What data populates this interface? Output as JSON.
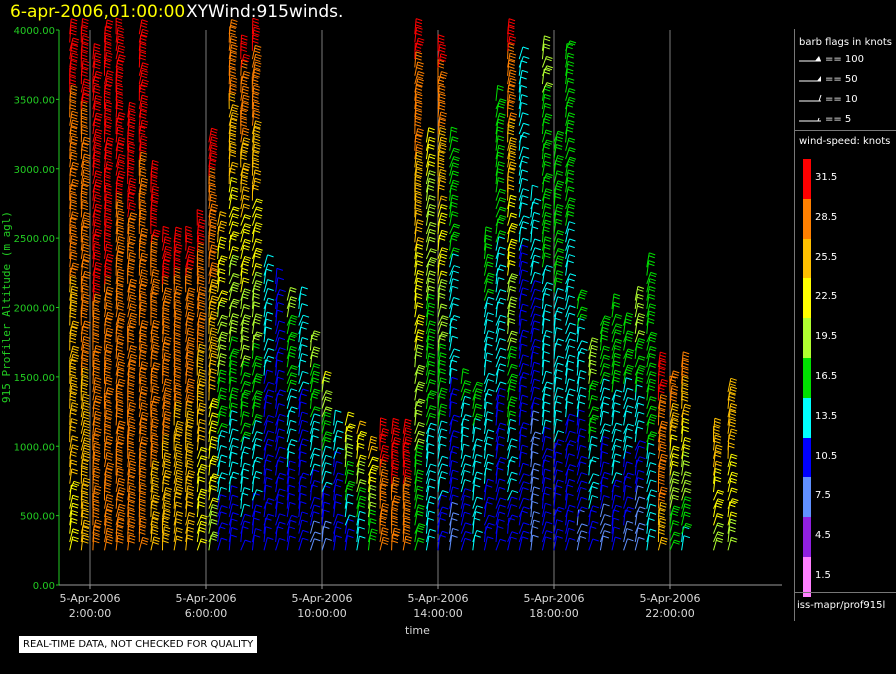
{
  "header": {
    "date": "6-apr-2006,01:00:00",
    "name": "XYWind:915winds."
  },
  "chart_data": {
    "type": "wind-barb",
    "xlabel": "time",
    "ylabel": "915 Profiler Altitude (m agl)",
    "ylim": [
      0,
      4000
    ],
    "y_ticks": [
      "4000.00",
      "3500.00",
      "3000.00",
      "2500.00",
      "2000.00",
      "1500.00",
      "1000.00",
      "500.00",
      "0.00"
    ],
    "x_ticks": [
      {
        "hour": 2,
        "date": "5-Apr-2006",
        "time": "2:00:00"
      },
      {
        "hour": 6,
        "date": "5-Apr-2006",
        "time": "6:00:00"
      },
      {
        "hour": 10,
        "date": "5-Apr-2006",
        "time": "10:00:00"
      },
      {
        "hour": 14,
        "date": "5-Apr-2006",
        "time": "14:00:00"
      },
      {
        "hour": 18,
        "date": "5-Apr-2006",
        "time": "18:00:00"
      },
      {
        "hour": 22,
        "date": "5-Apr-2006",
        "time": "22:00:00"
      }
    ],
    "xlim_hours": [
      1,
      25
    ],
    "grid": "vertical",
    "profiles": [
      {
        "hour": 1.3,
        "top": 4000,
        "speed_low": 23,
        "speed_high": 31
      },
      {
        "hour": 1.7,
        "top": 4000,
        "speed_low": 25,
        "speed_high": 31
      },
      {
        "hour": 2.1,
        "top": 3800,
        "speed_low": 29,
        "speed_high": 31
      },
      {
        "hour": 2.5,
        "top": 4000,
        "speed_low": 29,
        "speed_high": 31
      },
      {
        "hour": 2.9,
        "top": 4000,
        "speed_low": 28,
        "speed_high": 31
      },
      {
        "hour": 3.3,
        "top": 3400,
        "speed_low": 27,
        "speed_high": 31
      },
      {
        "hour": 3.7,
        "top": 4000,
        "speed_low": 27,
        "speed_high": 31
      },
      {
        "hour": 4.1,
        "top": 3000,
        "speed_low": 26,
        "speed_high": 31
      },
      {
        "hour": 4.5,
        "top": 2500,
        "speed_low": 25,
        "speed_high": 31
      },
      {
        "hour": 4.9,
        "top": 2500,
        "speed_low": 24,
        "speed_high": 31
      },
      {
        "hour": 5.3,
        "top": 2500,
        "speed_low": 24,
        "speed_high": 31
      },
      {
        "hour": 5.7,
        "top": 2600,
        "speed_low": 21,
        "speed_high": 31
      },
      {
        "hour": 6.1,
        "top": 3200,
        "speed_low": 20,
        "speed_high": 31
      },
      {
        "hour": 6.4,
        "top": 2600,
        "speed_low": 10,
        "speed_high": 25
      },
      {
        "hour": 6.8,
        "top": 4000,
        "speed_low": 10,
        "speed_high": 30
      },
      {
        "hour": 7.2,
        "top": 3900,
        "speed_low": 11,
        "speed_high": 31
      },
      {
        "hour": 7.6,
        "top": 4000,
        "speed_low": 10,
        "speed_high": 31
      },
      {
        "hour": 8.0,
        "top": 2300,
        "speed_low": 9,
        "speed_high": 14
      },
      {
        "hour": 8.4,
        "top": 2200,
        "speed_low": 11,
        "speed_high": 12
      },
      {
        "hour": 8.8,
        "top": 2100,
        "speed_low": 9,
        "speed_high": 19
      },
      {
        "hour": 9.2,
        "top": 2100,
        "speed_low": 9,
        "speed_high": 14
      },
      {
        "hour": 9.6,
        "top": 1800,
        "speed_low": 8,
        "speed_high": 20
      },
      {
        "hour": 10.0,
        "top": 1500,
        "speed_low": 7,
        "speed_high": 22
      },
      {
        "hour": 10.4,
        "top": 1200,
        "speed_low": 10,
        "speed_high": 13
      },
      {
        "hour": 10.8,
        "top": 1200,
        "speed_low": 10,
        "speed_high": 24
      },
      {
        "hour": 11.2,
        "top": 1100,
        "speed_low": 12,
        "speed_high": 25
      },
      {
        "hour": 11.6,
        "top": 1000,
        "speed_low": 15,
        "speed_high": 26
      },
      {
        "hour": 12.0,
        "top": 1100,
        "speed_low": 28,
        "speed_high": 31
      },
      {
        "hour": 12.4,
        "top": 1100,
        "speed_low": 29,
        "speed_high": 31
      },
      {
        "hour": 12.8,
        "top": 1100,
        "speed_low": 29,
        "speed_high": 31
      },
      {
        "hour": 13.2,
        "top": 4000,
        "speed_low": 15,
        "speed_high": 31
      },
      {
        "hour": 13.6,
        "top": 3200,
        "speed_low": 12,
        "speed_high": 22
      },
      {
        "hour": 14.0,
        "top": 3900,
        "speed_low": 10,
        "speed_high": 31
      },
      {
        "hour": 14.4,
        "top": 3200,
        "speed_low": 8,
        "speed_high": 18
      },
      {
        "hour": 14.8,
        "top": 1500,
        "speed_low": 10,
        "speed_high": 16
      },
      {
        "hour": 15.2,
        "top": 1400,
        "speed_low": 12,
        "speed_high": 16
      },
      {
        "hour": 15.6,
        "top": 2500,
        "speed_low": 11,
        "speed_high": 16
      },
      {
        "hour": 16.0,
        "top": 3500,
        "speed_low": 9,
        "speed_high": 18
      },
      {
        "hour": 16.4,
        "top": 4000,
        "speed_low": 10,
        "speed_high": 31
      },
      {
        "hour": 16.8,
        "top": 3800,
        "speed_low": 9,
        "speed_high": 14
      },
      {
        "hour": 17.2,
        "top": 2800,
        "speed_low": 6,
        "speed_high": 14
      },
      {
        "hour": 17.6,
        "top": 3900,
        "speed_low": 10,
        "speed_high": 19
      },
      {
        "hour": 18.0,
        "top": 3200,
        "speed_low": 10,
        "speed_high": 18
      },
      {
        "hour": 18.4,
        "top": 3900,
        "speed_low": 10,
        "speed_high": 18
      },
      {
        "hour": 18.8,
        "top": 2100,
        "speed_low": 8,
        "speed_high": 16
      },
      {
        "hour": 19.2,
        "top": 1700,
        "speed_low": 10,
        "speed_high": 20
      },
      {
        "hour": 19.6,
        "top": 1900,
        "speed_low": 7,
        "speed_high": 18
      },
      {
        "hour": 20.0,
        "top": 2000,
        "speed_low": 10,
        "speed_high": 18
      },
      {
        "hour": 20.4,
        "top": 1900,
        "speed_low": 8,
        "speed_high": 18
      },
      {
        "hour": 20.8,
        "top": 2100,
        "speed_low": 6,
        "speed_high": 21
      },
      {
        "hour": 21.2,
        "top": 2300,
        "speed_low": 14,
        "speed_high": 17
      },
      {
        "hour": 21.6,
        "top": 1600,
        "speed_low": 26,
        "speed_high": 31
      },
      {
        "hour": 22.0,
        "top": 1500,
        "speed_low": 15,
        "speed_high": 30
      },
      {
        "hour": 22.4,
        "top": 1600,
        "speed_low": 14,
        "speed_high": 29
      },
      {
        "hour": 23.5,
        "top": 1100,
        "speed_low": 20,
        "speed_high": 27
      },
      {
        "hour": 24.0,
        "top": 1400,
        "speed_low": 20,
        "speed_high": 27
      }
    ]
  },
  "legend": {
    "flags_title": "barb flags in knots",
    "flags": [
      "== 100",
      "== 50",
      "== 10",
      "== 5"
    ],
    "speed_title": "wind-speed: knots",
    "speeds": [
      {
        "label": "31.5",
        "color": "#ff0000"
      },
      {
        "label": "28.5",
        "color": "#ff8000"
      },
      {
        "label": "25.5",
        "color": "#ffc000"
      },
      {
        "label": "22.5",
        "color": "#ffff00"
      },
      {
        "label": "19.5",
        "color": "#b0ff30"
      },
      {
        "label": "16.5",
        "color": "#00e000"
      },
      {
        "label": "13.5",
        "color": "#00ffff"
      },
      {
        "label": "10.5",
        "color": "#0000ff"
      },
      {
        "label": "7.5",
        "color": "#6090ff"
      },
      {
        "label": "4.5",
        "color": "#9020e0"
      },
      {
        "label": "1.5",
        "color": "#ff80ff"
      }
    ],
    "source": "iss-mapr/prof915l"
  },
  "qa_note": "REAL-TIME DATA, NOT CHECKED FOR QUALITY"
}
